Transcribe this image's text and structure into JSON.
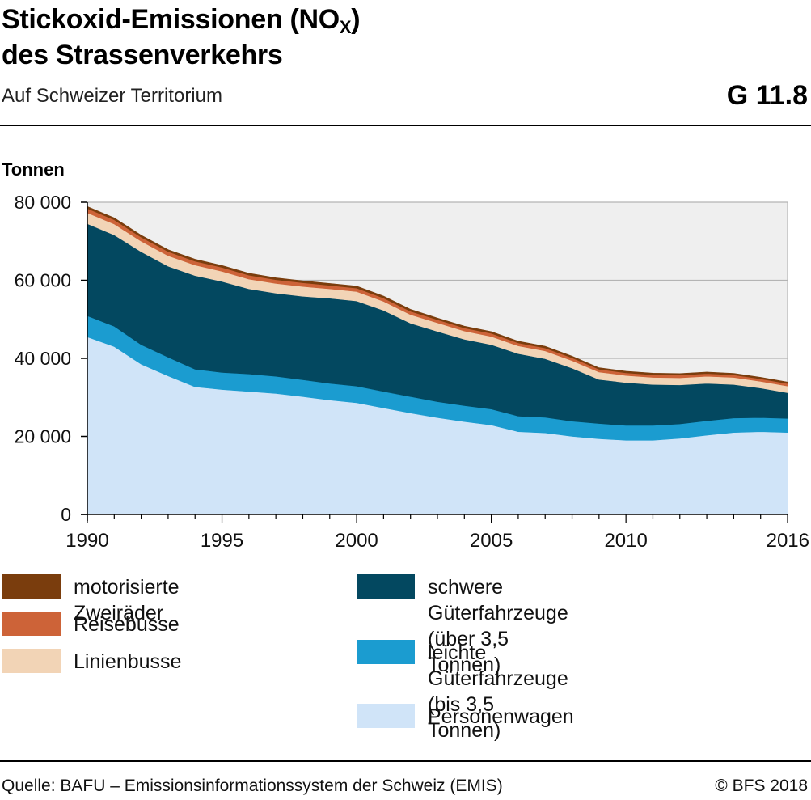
{
  "header": {
    "title_line1_pre": "Stickoxid-Emissionen (NO",
    "title_sub": "X",
    "title_line1_post": ")",
    "title_line2": "des Strassenverkehrs",
    "subtitle": "Auf Schweizer Territorium",
    "graphic_number": "G 11.8"
  },
  "footer": {
    "source": "Quelle: BAFU – Emissionsinformationssystem der Schweiz (EMIS)",
    "copyright": "© BFS 2018"
  },
  "chart_data": {
    "type": "area",
    "stacked": true,
    "ylabel": "Tonnen",
    "xlim": [
      1990,
      2016
    ],
    "ylim": [
      0,
      80000
    ],
    "x_ticks": [
      "1990",
      "1995",
      "2000",
      "2005",
      "2010",
      "2016"
    ],
    "x_tick_values": [
      1990,
      1995,
      2000,
      2005,
      2010,
      2016
    ],
    "y_ticks": [
      "0",
      "20 000",
      "40 000",
      "60 000",
      "80 000"
    ],
    "y_tick_values": [
      0,
      20000,
      40000,
      60000,
      80000
    ],
    "grid": true,
    "legend_position": "bottom",
    "x": [
      1990,
      1991,
      1992,
      1993,
      1994,
      1995,
      1996,
      1997,
      1998,
      1999,
      2000,
      2001,
      2002,
      2003,
      2004,
      2005,
      2006,
      2007,
      2008,
      2009,
      2010,
      2011,
      2012,
      2013,
      2014,
      2015,
      2016
    ],
    "series": [
      {
        "name": "Personenwagen",
        "color": "#d0e4f8",
        "values": [
          45500,
          43000,
          38500,
          35500,
          32700,
          32000,
          31500,
          31000,
          30200,
          29300,
          28600,
          27300,
          26000,
          24800,
          23800,
          22900,
          21200,
          20900,
          20000,
          19400,
          19000,
          19000,
          19500,
          20300,
          21000,
          21200,
          21000
        ]
      },
      {
        "name": "leichte Güterfahrzeuge\n(bis 3,5 Tonnen)",
        "color": "#1b9cd0",
        "values": [
          5400,
          5200,
          5000,
          4800,
          4500,
          4400,
          4500,
          4400,
          4300,
          4300,
          4300,
          4200,
          4200,
          4100,
          4100,
          4100,
          4000,
          4000,
          3900,
          3900,
          3800,
          3800,
          3700,
          3700,
          3700,
          3600,
          3600
        ]
      },
      {
        "name": "schwere Güterfahrzeuge\n(über 3,5 Tonnen)",
        "color": "#034860",
        "values": [
          23600,
          23400,
          23800,
          23300,
          24000,
          23300,
          21800,
          21300,
          21400,
          21800,
          21800,
          20800,
          18800,
          18000,
          17000,
          16500,
          16000,
          15000,
          13600,
          11300,
          11000,
          10500,
          10000,
          9600,
          8600,
          7600,
          6600
        ]
      },
      {
        "name": "Linienbusse",
        "color": "#f2d4b6",
        "values": [
          2800,
          2800,
          2700,
          2700,
          2700,
          2600,
          2500,
          2500,
          2500,
          2400,
          2400,
          2300,
          2200,
          2200,
          2100,
          2100,
          2000,
          2000,
          1900,
          1900,
          1800,
          1800,
          1800,
          1800,
          1800,
          1700,
          1700
        ]
      },
      {
        "name": "Reisebusse",
        "color": "#cd6338",
        "values": [
          1100,
          1100,
          1050,
          1050,
          1000,
          1000,
          1000,
          950,
          950,
          900,
          900,
          850,
          850,
          800,
          800,
          800,
          750,
          750,
          750,
          700,
          700,
          700,
          700,
          700,
          650,
          650,
          650
        ]
      },
      {
        "name": "motorisierte Zweiräder",
        "color": "#7a3d0d",
        "values": [
          500,
          500,
          500,
          500,
          500,
          500,
          500,
          500,
          500,
          500,
          500,
          500,
          500,
          450,
          450,
          450,
          450,
          450,
          400,
          400,
          400,
          400,
          400,
          400,
          400,
          400,
          400
        ]
      }
    ]
  },
  "legend": {
    "left": [
      "motorisierte Zweiräder",
      "Reisebusse",
      "Linienbusse"
    ],
    "right": [
      "schwere Güterfahrzeuge\n(über 3,5 Tonnen)",
      "leichte Güterfahrzeuge\n(bis 3,5 Tonnen)",
      "Personenwagen"
    ]
  }
}
